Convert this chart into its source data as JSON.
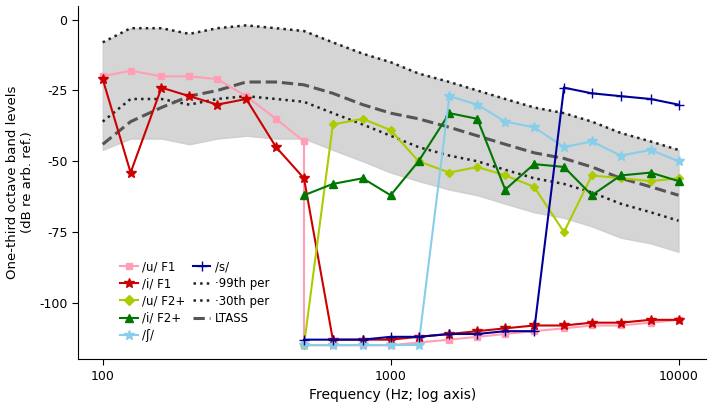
{
  "xlabel": "Frequency (Hz; log axis)",
  "ylabel": "One-third octave band levels\n(dB re arb. ref.)",
  "ylim": [
    -120,
    5
  ],
  "yticks": [
    0,
    -25,
    -50,
    -75,
    -100
  ],
  "yticklabels": [
    "0",
    "-25",
    "-50",
    "-75",
    "-100"
  ],
  "xticks": [
    100,
    1000,
    10000
  ],
  "xticklabels": [
    "100",
    "1000",
    "10000"
  ],
  "freqs_all": [
    100,
    125,
    160,
    200,
    250,
    315,
    400,
    500,
    630,
    800,
    1000,
    1250,
    1600,
    2000,
    2500,
    3150,
    4000,
    5000,
    6300,
    8000,
    10000
  ],
  "ltass": [
    -44,
    -36,
    -31,
    -27,
    -25,
    -22,
    -22,
    -23,
    -26,
    -30,
    -33,
    -35,
    -38,
    -41,
    -44,
    -47,
    -49,
    -52,
    -56,
    -59,
    -62
  ],
  "p99_top": [
    -8,
    -3,
    -3,
    -5,
    -3,
    -2,
    -3,
    -4,
    -8,
    -12,
    -15,
    -19,
    -22,
    -25,
    -28,
    -31,
    -33,
    -36,
    -40,
    -43,
    -46
  ],
  "p30_bot": [
    -46,
    -42,
    -42,
    -44,
    -42,
    -41,
    -42,
    -42,
    -46,
    -50,
    -54,
    -57,
    -60,
    -62,
    -65,
    -68,
    -70,
    -73,
    -77,
    -79,
    -82
  ],
  "p99_line": [
    -8,
    -3,
    -3,
    -5,
    -3,
    -2,
    -3,
    -4,
    -8,
    -12,
    -15,
    -19,
    -22,
    -25,
    -28,
    -31,
    -33,
    -36,
    -40,
    -43,
    -46
  ],
  "p30_line": [
    -36,
    -28,
    -28,
    -30,
    -28,
    -27,
    -28,
    -29,
    -33,
    -37,
    -41,
    -45,
    -48,
    -50,
    -53,
    -56,
    -58,
    -61,
    -65,
    -68,
    -71
  ],
  "freqs_u_F1_hi": [
    100,
    125,
    160,
    200,
    250,
    315,
    400,
    500
  ],
  "u_F1_hi": [
    -20,
    -18,
    -20,
    -20,
    -21,
    -27,
    -35,
    -43
  ],
  "freqs_u_F1_lo": [
    500,
    630,
    800,
    1000,
    1250,
    1600,
    2000,
    2500,
    3150,
    4000,
    5000,
    6300,
    8000,
    10000
  ],
  "u_F1_lo": [
    -115,
    -115,
    -115,
    -115,
    -114,
    -113,
    -112,
    -111,
    -110,
    -109,
    -108,
    -108,
    -107,
    -106
  ],
  "freqs_i_F1_hi": [
    100,
    125,
    160,
    200,
    250,
    315,
    400,
    500
  ],
  "i_F1_hi": [
    -21,
    -54,
    -24,
    -27,
    -30,
    -28,
    -45,
    -56
  ],
  "freqs_i_F1_lo": [
    630,
    800,
    1000,
    1250,
    1600,
    2000,
    2500,
    3150,
    4000,
    5000,
    6300,
    8000,
    10000
  ],
  "i_F1_lo": [
    -113,
    -113,
    -113,
    -112,
    -111,
    -110,
    -109,
    -108,
    -108,
    -107,
    -107,
    -106,
    -106
  ],
  "freqs_u_F2_hi": [
    630,
    800,
    1000,
    1250,
    1600,
    2000,
    2500,
    3150,
    4000,
    5000,
    6300,
    8000,
    10000
  ],
  "u_F2_hi": [
    -37,
    -35,
    -39,
    -50,
    -54,
    -52,
    -55,
    -59,
    -75,
    -55,
    -56,
    -57,
    -56
  ],
  "freqs_u_F2_lo": [
    500
  ],
  "u_F2_lo": [
    -115
  ],
  "freqs_i_F2": [
    500,
    630,
    800,
    1000,
    1250,
    1600,
    2000,
    2500,
    3150,
    4000,
    5000,
    6300,
    8000,
    10000
  ],
  "i_F2": [
    -62,
    -58,
    -56,
    -62,
    -50,
    -33,
    -35,
    -60,
    -51,
    -52,
    -62,
    -55,
    -54,
    -57
  ],
  "freqs_sh_hi": [
    1600,
    2000,
    2500,
    3150,
    4000,
    5000,
    6300,
    8000,
    10000
  ],
  "sh_hi": [
    -27,
    -30,
    -36,
    -38,
    -45,
    -43,
    -48,
    -46,
    -50
  ],
  "freqs_sh_lo": [
    500,
    630,
    800,
    1000,
    1250
  ],
  "sh_lo": [
    -115,
    -115,
    -115,
    -115,
    -115
  ],
  "freqs_s_hi": [
    4000,
    5000,
    6300,
    8000,
    10000
  ],
  "s_hi": [
    -24,
    -26,
    -27,
    -28,
    -30
  ],
  "freqs_s_lo": [
    500,
    630,
    800,
    1000,
    1250,
    1600,
    2000,
    2500,
    3150
  ],
  "s_lo": [
    -113,
    -113,
    -113,
    -112,
    -112,
    -111,
    -111,
    -110,
    -110
  ],
  "color_u_F1": "#FF9EB5",
  "color_i_F1": "#CC0000",
  "color_u_F2": "#AACC00",
  "color_i_F2": "#007700",
  "color_sh": "#87CEEB",
  "color_s": "#000099",
  "color_ltass": "#555555",
  "color_dot": "#222222",
  "color_fill": "#C8C8C8"
}
